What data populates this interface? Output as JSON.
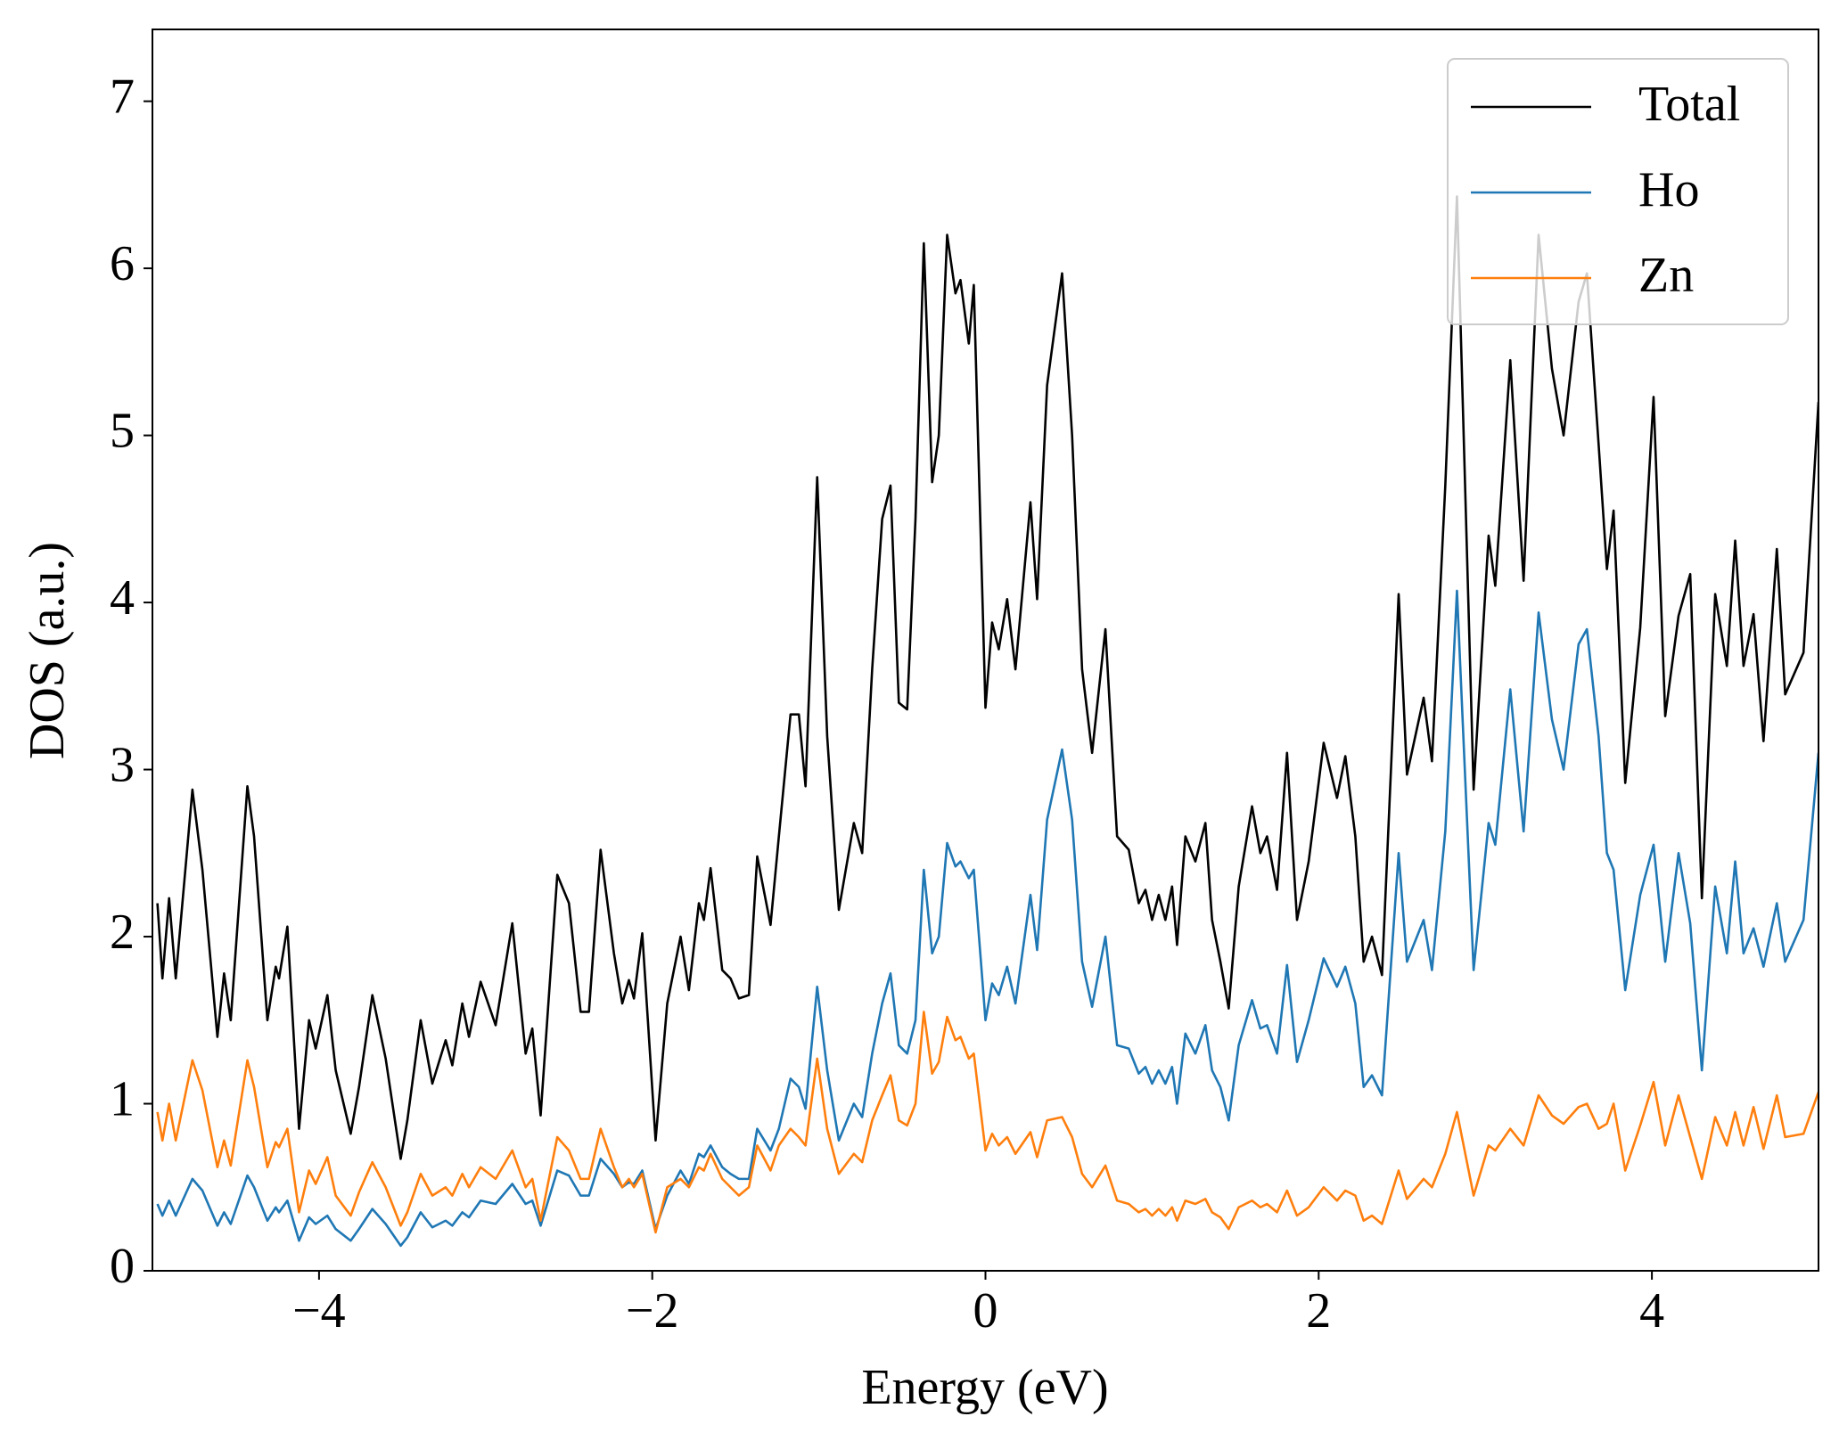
{
  "chart_data": {
    "type": "line",
    "xlabel": "Energy (eV)",
    "ylabel": "DOS (a.u.)",
    "xlim": [
      -5,
      5
    ],
    "ylim": [
      0,
      7.43
    ],
    "xticks": [
      {
        "value": -4,
        "label": "−4"
      },
      {
        "value": -2,
        "label": "−2"
      },
      0,
      2,
      4
    ],
    "yticks": [
      0,
      1,
      2,
      3,
      4,
      5,
      6,
      7
    ],
    "legend": "upper right",
    "x": [
      -4.97,
      -4.94,
      -4.9,
      -4.86,
      -4.76,
      -4.7,
      -4.61,
      -4.57,
      -4.53,
      -4.43,
      -4.39,
      -4.31,
      -4.26,
      -4.24,
      -4.19,
      -4.12,
      -4.06,
      -4.02,
      -3.95,
      -3.9,
      -3.81,
      -3.76,
      -3.68,
      -3.6,
      -3.51,
      -3.47,
      -3.39,
      -3.32,
      -3.24,
      -3.2,
      -3.14,
      -3.1,
      -3.03,
      -2.94,
      -2.84,
      -2.76,
      -2.72,
      -2.67,
      -2.57,
      -2.5,
      -2.43,
      -2.38,
      -2.31,
      -2.23,
      -2.18,
      -2.14,
      -2.11,
      -2.06,
      -1.98,
      -1.91,
      -1.83,
      -1.78,
      -1.72,
      -1.69,
      -1.65,
      -1.58,
      -1.53,
      -1.48,
      -1.42,
      -1.37,
      -1.29,
      -1.24,
      -1.17,
      -1.12,
      -1.08,
      -1.01,
      -0.95,
      -0.88,
      -0.79,
      -0.74,
      -0.68,
      -0.62,
      -0.57,
      -0.52,
      -0.47,
      -0.42,
      -0.37,
      -0.32,
      -0.28,
      -0.23,
      -0.18,
      -0.15,
      -0.1,
      -0.07,
      0.0,
      0.04,
      0.08,
      0.13,
      0.18,
      0.27,
      0.31,
      0.37,
      0.46,
      0.52,
      0.58,
      0.64,
      0.72,
      0.79,
      0.86,
      0.92,
      0.96,
      1.0,
      1.04,
      1.08,
      1.12,
      1.15,
      1.2,
      1.26,
      1.32,
      1.36,
      1.41,
      1.46,
      1.52,
      1.6,
      1.65,
      1.69,
      1.75,
      1.81,
      1.87,
      1.94,
      2.03,
      2.11,
      2.16,
      2.22,
      2.27,
      2.32,
      2.38,
      2.48,
      2.53,
      2.63,
      2.68,
      2.76,
      2.83,
      2.93,
      3.02,
      3.06,
      3.15,
      3.23,
      3.32,
      3.4,
      3.47,
      3.56,
      3.61,
      3.68,
      3.73,
      3.77,
      3.84,
      3.93,
      4.01,
      4.08,
      4.16,
      4.23,
      4.3,
      4.38,
      4.45,
      4.5,
      4.55,
      4.61,
      4.67,
      4.75,
      4.8,
      4.91,
      5.0
    ],
    "series": [
      {
        "name": "Total",
        "color": "#000000",
        "values": [
          2.2,
          1.75,
          2.23,
          1.75,
          2.88,
          2.4,
          1.4,
          1.78,
          1.5,
          2.9,
          2.6,
          1.5,
          1.82,
          1.75,
          2.06,
          0.85,
          1.5,
          1.33,
          1.65,
          1.2,
          0.82,
          1.1,
          1.65,
          1.27,
          0.67,
          0.9,
          1.5,
          1.12,
          1.38,
          1.23,
          1.6,
          1.4,
          1.73,
          1.47,
          2.08,
          1.3,
          1.45,
          0.93,
          2.37,
          2.2,
          1.55,
          1.55,
          2.52,
          1.9,
          1.6,
          1.74,
          1.63,
          2.02,
          0.78,
          1.6,
          2.0,
          1.68,
          2.2,
          2.1,
          2.41,
          1.8,
          1.75,
          1.63,
          1.65,
          2.48,
          2.07,
          2.6,
          3.33,
          3.33,
          2.9,
          4.75,
          3.2,
          2.16,
          2.68,
          2.5,
          3.6,
          4.5,
          4.7,
          3.4,
          3.36,
          4.5,
          6.15,
          4.72,
          5.0,
          6.2,
          5.85,
          5.93,
          5.55,
          5.9,
          3.37,
          3.88,
          3.72,
          4.02,
          3.6,
          4.6,
          4.02,
          5.3,
          5.97,
          5.0,
          3.6,
          3.1,
          3.84,
          2.6,
          2.52,
          2.2,
          2.28,
          2.1,
          2.25,
          2.1,
          2.3,
          1.95,
          2.6,
          2.45,
          2.68,
          2.1,
          1.85,
          1.57,
          2.3,
          2.78,
          2.5,
          2.6,
          2.28,
          3.1,
          2.1,
          2.45,
          3.16,
          2.83,
          3.08,
          2.6,
          1.85,
          2.0,
          1.77,
          4.05,
          2.97,
          3.43,
          3.05,
          4.7,
          6.43,
          2.88,
          4.4,
          4.1,
          5.45,
          4.13,
          6.2,
          5.4,
          5.0,
          5.8,
          5.97,
          4.95,
          4.2,
          4.55,
          2.92,
          3.85,
          5.23,
          3.32,
          3.92,
          4.17,
          2.23,
          4.05,
          3.62,
          4.37,
          3.62,
          3.93,
          3.17,
          4.32,
          3.45,
          3.7,
          5.2
        ]
      },
      {
        "name": "Ho",
        "color": "#1f77b4",
        "values": [
          0.4,
          0.33,
          0.42,
          0.33,
          0.55,
          0.48,
          0.27,
          0.35,
          0.28,
          0.57,
          0.5,
          0.3,
          0.38,
          0.35,
          0.42,
          0.18,
          0.32,
          0.28,
          0.33,
          0.25,
          0.18,
          0.25,
          0.37,
          0.28,
          0.15,
          0.2,
          0.35,
          0.26,
          0.3,
          0.27,
          0.35,
          0.32,
          0.42,
          0.4,
          0.52,
          0.4,
          0.42,
          0.27,
          0.6,
          0.57,
          0.45,
          0.45,
          0.67,
          0.58,
          0.5,
          0.53,
          0.52,
          0.6,
          0.25,
          0.45,
          0.6,
          0.52,
          0.7,
          0.68,
          0.75,
          0.62,
          0.58,
          0.55,
          0.55,
          0.85,
          0.72,
          0.85,
          1.15,
          1.1,
          0.97,
          1.7,
          1.2,
          0.78,
          1.0,
          0.92,
          1.3,
          1.6,
          1.78,
          1.35,
          1.3,
          1.5,
          2.4,
          1.9,
          2.0,
          2.56,
          2.42,
          2.45,
          2.35,
          2.4,
          1.5,
          1.72,
          1.65,
          1.82,
          1.6,
          2.25,
          1.92,
          2.7,
          3.12,
          2.7,
          1.85,
          1.58,
          2.0,
          1.35,
          1.33,
          1.18,
          1.22,
          1.12,
          1.2,
          1.12,
          1.22,
          1.0,
          1.42,
          1.3,
          1.47,
          1.2,
          1.1,
          0.9,
          1.35,
          1.62,
          1.45,
          1.47,
          1.3,
          1.83,
          1.25,
          1.5,
          1.87,
          1.7,
          1.82,
          1.6,
          1.1,
          1.17,
          1.05,
          2.5,
          1.85,
          2.1,
          1.8,
          2.63,
          4.07,
          1.8,
          2.68,
          2.55,
          3.48,
          2.63,
          3.94,
          3.3,
          3.0,
          3.75,
          3.84,
          3.2,
          2.5,
          2.4,
          1.68,
          2.25,
          2.55,
          1.85,
          2.5,
          2.08,
          1.2,
          2.3,
          1.9,
          2.45,
          1.9,
          2.05,
          1.82,
          2.2,
          1.85,
          2.1,
          3.1
        ]
      },
      {
        "name": "Zn",
        "color": "#ff7f0e",
        "values": [
          0.95,
          0.78,
          1.0,
          0.78,
          1.26,
          1.08,
          0.62,
          0.78,
          0.63,
          1.26,
          1.1,
          0.62,
          0.77,
          0.74,
          0.85,
          0.35,
          0.6,
          0.52,
          0.68,
          0.45,
          0.33,
          0.47,
          0.65,
          0.5,
          0.27,
          0.35,
          0.58,
          0.45,
          0.5,
          0.45,
          0.58,
          0.5,
          0.62,
          0.55,
          0.72,
          0.5,
          0.55,
          0.3,
          0.8,
          0.72,
          0.55,
          0.55,
          0.85,
          0.62,
          0.5,
          0.55,
          0.5,
          0.58,
          0.23,
          0.5,
          0.55,
          0.5,
          0.62,
          0.6,
          0.7,
          0.55,
          0.5,
          0.45,
          0.5,
          0.75,
          0.6,
          0.75,
          0.85,
          0.8,
          0.75,
          1.27,
          0.85,
          0.58,
          0.7,
          0.65,
          0.9,
          1.05,
          1.17,
          0.9,
          0.87,
          1.0,
          1.55,
          1.18,
          1.25,
          1.52,
          1.38,
          1.4,
          1.27,
          1.3,
          0.72,
          0.82,
          0.75,
          0.8,
          0.7,
          0.83,
          0.68,
          0.9,
          0.92,
          0.8,
          0.58,
          0.5,
          0.63,
          0.42,
          0.4,
          0.35,
          0.37,
          0.33,
          0.37,
          0.33,
          0.38,
          0.3,
          0.42,
          0.4,
          0.43,
          0.35,
          0.32,
          0.25,
          0.38,
          0.42,
          0.38,
          0.4,
          0.35,
          0.48,
          0.33,
          0.38,
          0.5,
          0.42,
          0.48,
          0.45,
          0.3,
          0.33,
          0.28,
          0.6,
          0.43,
          0.55,
          0.5,
          0.7,
          0.95,
          0.45,
          0.75,
          0.72,
          0.85,
          0.75,
          1.05,
          0.93,
          0.88,
          0.98,
          1.0,
          0.85,
          0.88,
          1.0,
          0.6,
          0.87,
          1.13,
          0.75,
          1.05,
          0.8,
          0.55,
          0.92,
          0.75,
          0.95,
          0.75,
          0.98,
          0.73,
          1.05,
          0.8,
          0.82,
          1.07
        ]
      }
    ]
  }
}
